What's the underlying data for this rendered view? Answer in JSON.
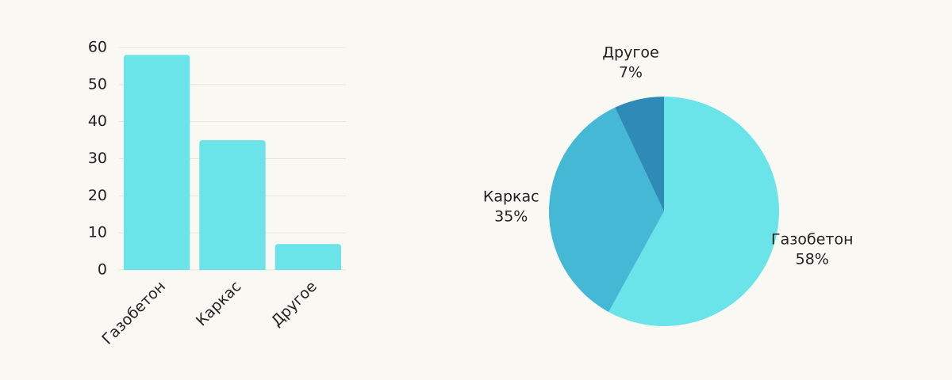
{
  "chart_data": [
    {
      "type": "bar",
      "categories": [
        "Газобетон",
        "Каркас",
        "Другое"
      ],
      "values": [
        58,
        35,
        7
      ],
      "color": "#6ae4e8",
      "ylim": [
        0,
        60
      ],
      "yticks": [
        0,
        10,
        20,
        30,
        40,
        50,
        60
      ],
      "grid": true
    },
    {
      "type": "pie",
      "categories": [
        "Газобетон",
        "Каркас",
        "Другое"
      ],
      "values": [
        58,
        35,
        7
      ],
      "value_labels": [
        "58%",
        "35%",
        "7%"
      ],
      "colors": [
        "#6ae4e8",
        "#45b8d6",
        "#2e8bb8"
      ]
    }
  ]
}
